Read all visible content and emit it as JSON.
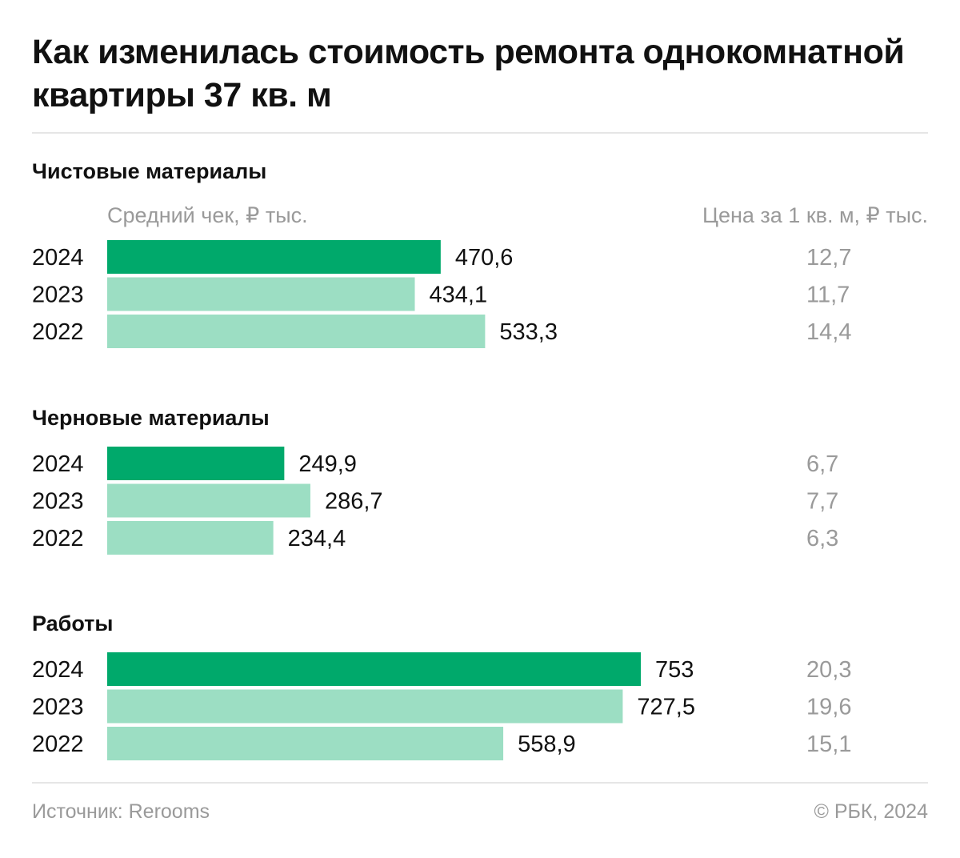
{
  "title": "Как изменилась стоимость ремонта однокомнатной квартиры 37 кв. м",
  "colors": {
    "current": "#00a96b",
    "previous": "#9cdec3",
    "text": "#111111",
    "muted": "#9a9a9a"
  },
  "chart_data": {
    "type": "bar",
    "orientation": "horizontal",
    "xlabel": "Средний чек, ₽ тыс.",
    "secondary_label": "Цена за 1 кв. м, ₽ тыс.",
    "groups": [
      {
        "name": "Чистовые материалы",
        "rows": [
          {
            "year": "2024",
            "value": 470.6,
            "label": "470,6",
            "per_sqm": "12,7"
          },
          {
            "year": "2023",
            "value": 434.1,
            "label": "434,1",
            "per_sqm": "11,7"
          },
          {
            "year": "2022",
            "value": 533.3,
            "label": "533,3",
            "per_sqm": "14,4"
          }
        ]
      },
      {
        "name": "Черновые материалы",
        "rows": [
          {
            "year": "2024",
            "value": 249.9,
            "label": "249,9",
            "per_sqm": "6,7"
          },
          {
            "year": "2023",
            "value": 286.7,
            "label": "286,7",
            "per_sqm": "7,7"
          },
          {
            "year": "2022",
            "value": 234.4,
            "label": "234,4",
            "per_sqm": "6,3"
          }
        ]
      },
      {
        "name": "Работы",
        "rows": [
          {
            "year": "2024",
            "value": 753,
            "label": "753",
            "per_sqm": "20,3"
          },
          {
            "year": "2023",
            "value": 727.5,
            "label": "727,5",
            "per_sqm": "19,6"
          },
          {
            "year": "2022",
            "value": 558.9,
            "label": "558,9",
            "per_sqm": "15,1"
          }
        ]
      }
    ]
  },
  "footer": {
    "source": "Источник: Rerooms",
    "copyright": "© РБК, 2024"
  }
}
